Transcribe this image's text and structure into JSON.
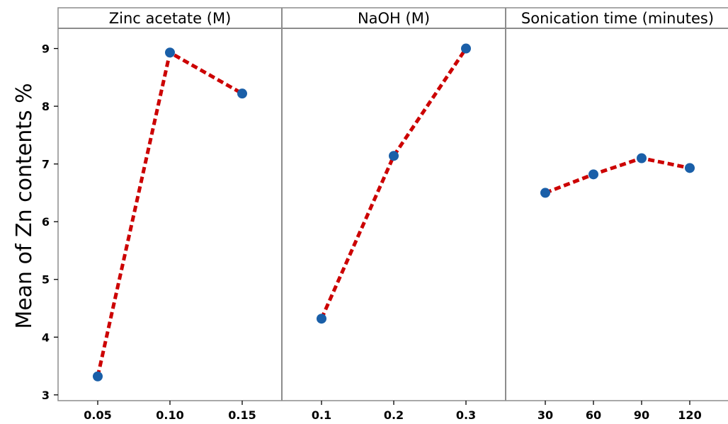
{
  "chart_data": {
    "type": "line",
    "ylabel": "Mean of Zn contents %",
    "ylim": [
      2.9,
      9.35
    ],
    "yticks": [
      3,
      4,
      5,
      6,
      7,
      8,
      9
    ],
    "grid": false,
    "colors": {
      "line": "#cc0000",
      "marker": "#1a5fa8",
      "frame": "#8c8c8c"
    },
    "panels": [
      {
        "title": "Zinc acetate (M)",
        "categories": [
          "0.05",
          "0.10",
          "0.15"
        ],
        "values": [
          3.32,
          8.93,
          8.22
        ]
      },
      {
        "title": "NaOH (M)",
        "categories": [
          "0.1",
          "0.2",
          "0.3"
        ],
        "values": [
          4.32,
          7.14,
          9.0
        ]
      },
      {
        "title": "Sonication time (minutes)",
        "categories": [
          "30",
          "60",
          "90",
          "120"
        ],
        "values": [
          6.5,
          6.82,
          7.1,
          6.93
        ]
      }
    ]
  }
}
